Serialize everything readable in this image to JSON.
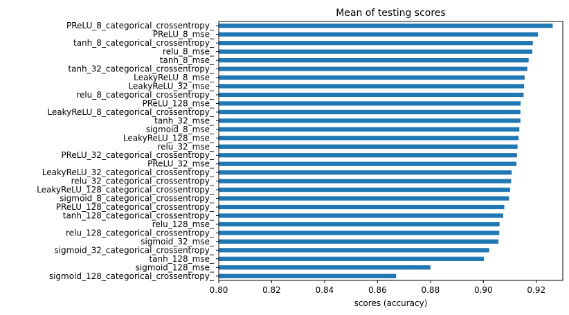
{
  "chart_data": {
    "type": "bar",
    "orientation": "horizontal",
    "title": "Mean of testing scores",
    "xlabel": "scores (accuracy)",
    "ylabel": "",
    "xlim": [
      0.8,
      0.93
    ],
    "xticks": [
      "0.80",
      "0.82",
      "0.84",
      "0.86",
      "0.88",
      "0.90",
      "0.92"
    ],
    "grid": false,
    "bar_color": "#1f77b4",
    "categories": [
      "PReLU_8_categorical_crossentropy_",
      "PReLU_8_mse_",
      "tanh_8_categorical_crossentropy_",
      "relu_8_mse_",
      "tanh_8_mse_",
      "tanh_32_categorical_crossentropy_",
      "LeakyReLU_8_mse_",
      "LeakyReLU_32_mse_",
      "relu_8_categorical_crossentropy_",
      "PReLU_128_mse_",
      "LeakyReLU_8_categorical_crossentropy_",
      "tanh_32_mse_",
      "sigmoid_8_mse_",
      "LeakyReLU_128_mse_",
      "relu_32_mse_",
      "PReLU_32_categorical_crossentropy_",
      "PReLU_32_mse_",
      "LeakyReLU_32_categorical_crossentropy_",
      "relu_32_categorical_crossentropy_",
      "LeakyReLU_128_categorical_crossentropy_",
      "sigmoid_8_categorical_crossentropy_",
      "PReLU_128_categorical_crossentropy_",
      "tanh_128_categorical_crossentropy_",
      "relu_128_mse_",
      "relu_128_categorical_crossentropy_",
      "sigmoid_32_mse_",
      "sigmoid_32_categorical_crossentropy_",
      "tanh_128_mse_",
      "sigmoid_128_mse_",
      "sigmoid_128_categorical_crossentropy_"
    ],
    "values": [
      0.9262,
      0.9206,
      0.9187,
      0.9185,
      0.9171,
      0.9166,
      0.9156,
      0.9154,
      0.9152,
      0.9141,
      0.914,
      0.914,
      0.9136,
      0.9133,
      0.9129,
      0.9127,
      0.9125,
      0.9107,
      0.9105,
      0.9101,
      0.9097,
      0.9079,
      0.9075,
      0.9061,
      0.906,
      0.9057,
      0.9022,
      0.9002,
      0.88,
      0.867
    ]
  }
}
